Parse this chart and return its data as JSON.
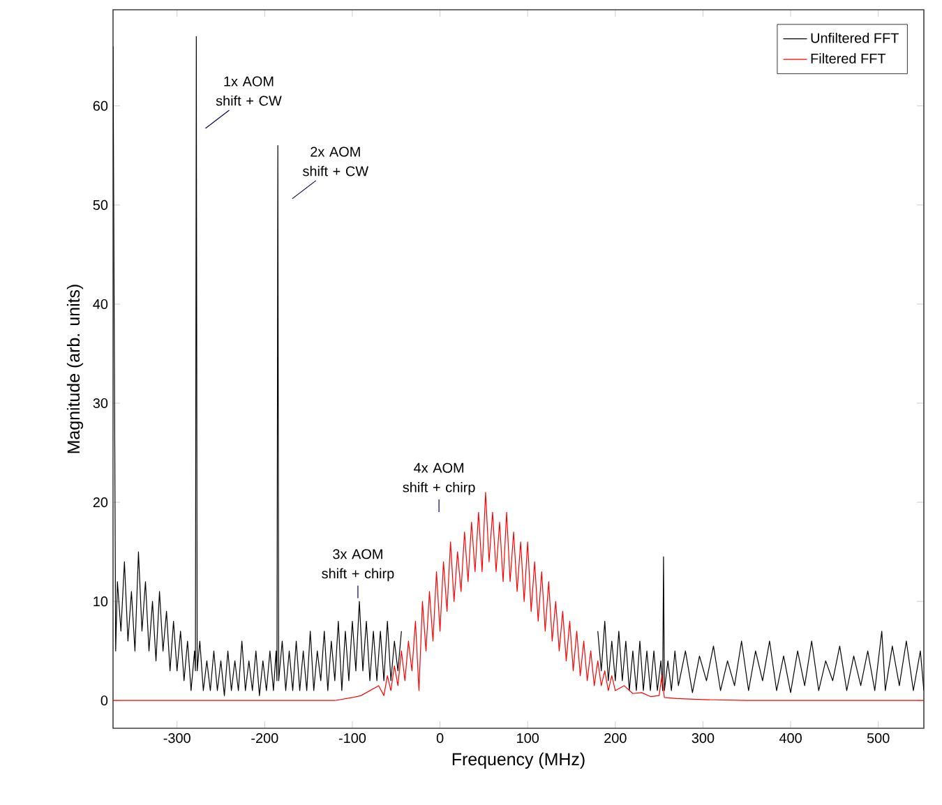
{
  "chart_data": {
    "type": "line",
    "xlabel": "Frequency (MHz)",
    "ylabel": "Magnitude (arb. units)",
    "xlim": [
      -373,
      552
    ],
    "ylim": [
      -2.8,
      69.7
    ],
    "xticks": [
      -300,
      -200,
      -100,
      0,
      100,
      200,
      300,
      400,
      500
    ],
    "yticks": [
      0,
      10,
      20,
      30,
      40,
      50,
      60
    ],
    "legend": "top right",
    "series": [
      {
        "name": "Unfiltered FFT",
        "color": "#000000",
        "x": [
          -373,
          -370,
          -368,
          -364,
          -360,
          -356,
          -352,
          -348,
          -344,
          -340,
          -336,
          -332,
          -328,
          -324,
          -320,
          -316,
          -312,
          -308,
          -304,
          -300,
          -296,
          -292,
          -288,
          -284,
          -280,
          -279,
          -278,
          -277,
          -274,
          -270,
          -266,
          -262,
          -258,
          -254,
          -250,
          -246,
          -242,
          -238,
          -234,
          -230,
          -226,
          -222,
          -218,
          -214,
          -210,
          -206,
          -202,
          -198,
          -194,
          -190,
          -187,
          -186,
          -185,
          -184,
          -180,
          -176,
          -172,
          -168,
          -164,
          -160,
          -156,
          -152,
          -148,
          -144,
          -140,
          -136,
          -132,
          -128,
          -124,
          -120,
          -116,
          -112,
          -108,
          -104,
          -100,
          -96,
          -92,
          -88,
          -84,
          -80,
          -76,
          -72,
          -68,
          -64,
          -60,
          -56,
          -52,
          -48,
          -44,
          -40,
          -36,
          -32,
          -28,
          -24,
          176,
          180,
          184,
          188,
          192,
          196,
          200,
          204,
          208,
          212,
          216,
          220,
          224,
          228,
          232,
          236,
          240,
          244,
          248,
          252,
          254,
          255,
          256,
          260,
          264,
          268,
          272,
          280,
          288,
          296,
          304,
          312,
          320,
          328,
          336,
          344,
          352,
          360,
          368,
          376,
          384,
          392,
          400,
          408,
          416,
          424,
          432,
          440,
          448,
          456,
          464,
          472,
          480,
          488,
          496,
          500,
          504,
          508,
          516,
          524,
          532,
          540,
          548,
          552
        ],
        "values": [
          66,
          5,
          12,
          7,
          14,
          6,
          11,
          5,
          15,
          7,
          12,
          5,
          10,
          4,
          11,
          5,
          9,
          3,
          8,
          3,
          7,
          2,
          6,
          1,
          5,
          3,
          67,
          3,
          6,
          1,
          4,
          1,
          5,
          1,
          4,
          0.5,
          5,
          1,
          4,
          1,
          6,
          1,
          4,
          1,
          5,
          0.5,
          4,
          1,
          5,
          1,
          5,
          2,
          56,
          2,
          6,
          1,
          5,
          1,
          6,
          1,
          5,
          1,
          7,
          1,
          5,
          2,
          7,
          1,
          6,
          2,
          8,
          1,
          7,
          2,
          8,
          3,
          10,
          3,
          8,
          2,
          7,
          2,
          7,
          2,
          8,
          2,
          6,
          3,
          7,
          null,
          null,
          null,
          null,
          null,
          null,
          7,
          3,
          8,
          2,
          6,
          2,
          7,
          2,
          6,
          1,
          5,
          1,
          6,
          1,
          5,
          1,
          5,
          1,
          4,
          1,
          14.5,
          1,
          4,
          1,
          5,
          1.5,
          5,
          0.8,
          4.5,
          2,
          5.5,
          1,
          4,
          1.5,
          6,
          1,
          5,
          2,
          6,
          1,
          4.5,
          0.8,
          5,
          1.5,
          6,
          1,
          4,
          2,
          5.5,
          1,
          4.5,
          1.5,
          5,
          1,
          4,
          7,
          1,
          5.5,
          1.5,
          6,
          1,
          5,
          1
        ]
      },
      {
        "name": "Filtered FFT",
        "color": "#ff0000",
        "x": [
          -373,
          -120,
          -100,
          -90,
          -80,
          -70,
          -64,
          -60,
          -56,
          -52,
          -48,
          -44,
          -40,
          -36,
          -32,
          -28,
          -24,
          -20,
          -16,
          -12,
          -8,
          -4,
          0,
          4,
          8,
          12,
          16,
          20,
          24,
          28,
          32,
          36,
          40,
          44,
          48,
          52,
          56,
          60,
          64,
          68,
          72,
          76,
          80,
          84,
          88,
          92,
          96,
          100,
          104,
          108,
          112,
          116,
          120,
          124,
          128,
          132,
          136,
          140,
          144,
          148,
          152,
          156,
          160,
          164,
          168,
          172,
          176,
          180,
          184,
          188,
          192,
          196,
          200,
          210,
          220,
          230,
          240,
          250,
          253,
          256,
          270,
          300,
          350,
          552
        ],
        "values": [
          0,
          0,
          0.3,
          0.5,
          1,
          1.5,
          0.5,
          2.5,
          1,
          3.5,
          1.5,
          5,
          2,
          6,
          3,
          8,
          1,
          10,
          5,
          11,
          6,
          13,
          7,
          14,
          9,
          16,
          10,
          15,
          11,
          17,
          12,
          18,
          13,
          19,
          13,
          21,
          14,
          19,
          13,
          18,
          12,
          19,
          12,
          17,
          11,
          16,
          10,
          16,
          9,
          14,
          8,
          13,
          7,
          12,
          6,
          10,
          5,
          9,
          4,
          8,
          3,
          7,
          2.5,
          6,
          2,
          5,
          1.5,
          4,
          1.5,
          3,
          1,
          2.5,
          1,
          1.5,
          0.7,
          0.8,
          0.4,
          0.5,
          2.5,
          0.3,
          0.2,
          0.1,
          0,
          0
        ]
      }
    ],
    "annotations": [
      "1x AOM shift + CW",
      "2x AOM shift + CW",
      "3x AOM shift + chirp",
      "4x AOM shift + chirp"
    ]
  }
}
